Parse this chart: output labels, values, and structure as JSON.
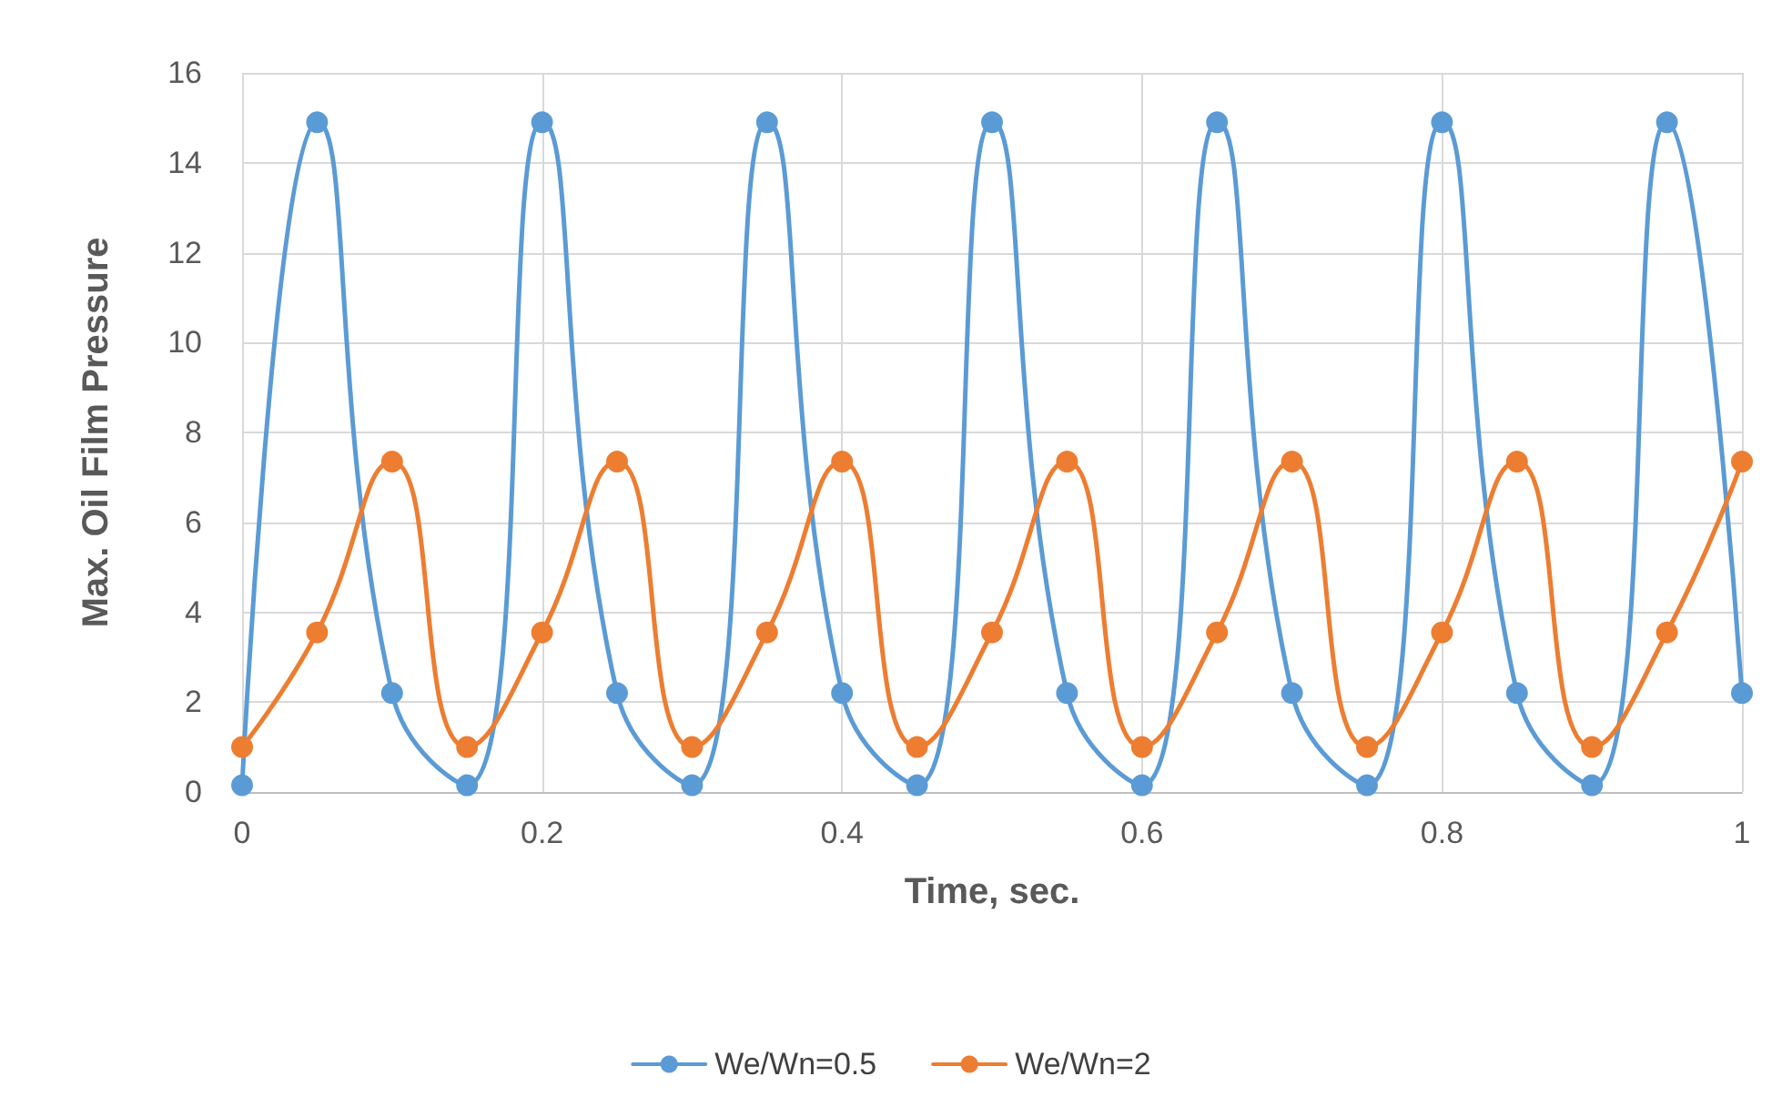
{
  "chart_data": {
    "type": "line",
    "xlabel": "Time, sec.",
    "ylabel": "Max. Oil Film Pressure",
    "x": [
      0,
      0.05,
      0.1,
      0.15,
      0.2,
      0.25,
      0.3,
      0.35,
      0.4,
      0.45,
      0.5,
      0.55,
      0.6,
      0.65,
      0.7,
      0.75,
      0.8,
      0.85,
      0.9,
      0.95,
      1
    ],
    "series": [
      {
        "name": "We/Wn=0.5",
        "color": "#5b9bd5",
        "values": [
          0.15,
          14.9,
          2.2,
          0.15,
          14.9,
          2.2,
          0.15,
          14.9,
          2.2,
          0.15,
          14.9,
          2.2,
          0.15,
          14.9,
          2.2,
          0.15,
          14.9,
          2.2,
          0.15,
          14.9,
          2.2
        ]
      },
      {
        "name": "We/Wn=2",
        "color": "#ed7d31",
        "values": [
          1,
          3.55,
          7.35,
          1,
          3.55,
          7.35,
          1,
          3.55,
          7.35,
          1,
          3.55,
          7.35,
          1,
          3.55,
          7.35,
          1,
          3.55,
          7.35,
          1,
          3.55,
          7.35
        ]
      }
    ],
    "xlim": [
      0,
      1
    ],
    "xticks": [
      0,
      0.2,
      0.4,
      0.6,
      0.8,
      1
    ],
    "ylim": [
      0,
      16
    ],
    "yticks": [
      0,
      2,
      4,
      6,
      8,
      10,
      12,
      14,
      16
    ],
    "grid": true,
    "legend": "bottom",
    "marker": "circle",
    "line_style": "solid"
  }
}
